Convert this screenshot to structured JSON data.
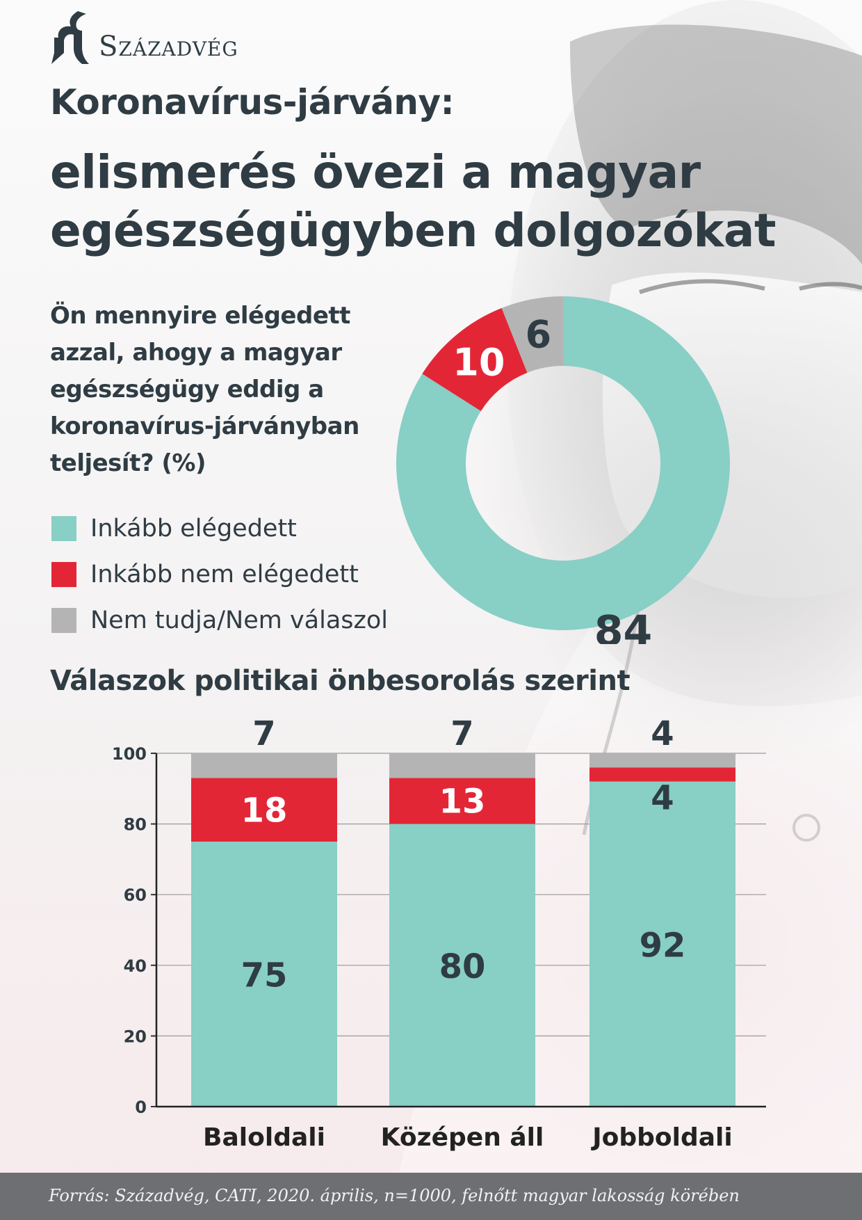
{
  "brand": {
    "name": "Századvég",
    "logo_icon": "szazadveg-logo-icon"
  },
  "header": {
    "title_line1": "Koronavírus-járvány:",
    "title_line2": "elismerés övezi a magyar egészségügyben dolgozókat"
  },
  "question": "Ön mennyire elégedett azzal, ahogy a magyar egészségügy eddig a koronavírus-járványban teljesít? (%)",
  "colors": {
    "satisfied": "#88cfc5",
    "not_satisfied": "#e32636",
    "dont_know": "#b4b4b4",
    "text": "#2f3c44",
    "footer_bg": "#6e6f72"
  },
  "legend": [
    {
      "label": "Inkább elégedett",
      "color": "#88cfc5"
    },
    {
      "label": "Inkább nem elégedett",
      "color": "#e32636"
    },
    {
      "label": "Nem tudja/Nem válaszol",
      "color": "#b4b4b4"
    }
  ],
  "section_title": "Válaszok politikai önbesorolás szerint",
  "chart_data": [
    {
      "type": "pie",
      "categories": [
        "Inkább elégedett",
        "Inkább nem elégedett",
        "Nem tudja/Nem válaszol"
      ],
      "values": [
        84,
        10,
        6
      ],
      "labels": [
        "84",
        "10",
        "6"
      ],
      "colors": [
        "#88cfc5",
        "#e32636",
        "#b4b4b4"
      ],
      "donut": true
    },
    {
      "type": "bar",
      "stacked": true,
      "categories": [
        "Baloldali",
        "Középen áll",
        "Jobboldali"
      ],
      "series": [
        {
          "name": "Inkább elégedett",
          "values": [
            75,
            80,
            92
          ],
          "labels": [
            "75",
            "80",
            "92"
          ],
          "color": "#88cfc5"
        },
        {
          "name": "Inkább nem elégedett",
          "values": [
            18,
            13,
            4
          ],
          "labels": [
            "18",
            "13",
            "4"
          ],
          "color": "#e32636"
        },
        {
          "name": "Nem tudja/Nem válaszol",
          "values": [
            7,
            7,
            4
          ],
          "labels": [
            "7",
            "7",
            "4"
          ],
          "color": "#b4b4b4"
        }
      ],
      "ylim": [
        0,
        100
      ],
      "yticks": [
        "0",
        "20",
        "40",
        "60",
        "80",
        "100"
      ],
      "grid": true
    }
  ],
  "footer": {
    "source": "Forrás: Századvég, CATI, 2020. április, n=1000, felnőtt magyar lakosság körében"
  }
}
